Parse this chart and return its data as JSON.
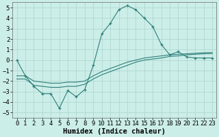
{
  "xlabel": "Humidex (Indice chaleur)",
  "bg_color": "#cceee8",
  "line_color": "#2d7d78",
  "grid_color": "#aad4cc",
  "xlim": [
    -0.5,
    23.5
  ],
  "ylim": [
    -5.5,
    5.5
  ],
  "xticks": [
    0,
    1,
    2,
    3,
    4,
    5,
    6,
    7,
    8,
    9,
    10,
    11,
    12,
    13,
    14,
    15,
    16,
    17,
    18,
    19,
    20,
    21,
    22,
    23
  ],
  "yticks": [
    -5,
    -4,
    -3,
    -2,
    -1,
    0,
    1,
    2,
    3,
    4,
    5
  ],
  "main_y": [
    0.0,
    -1.5,
    -2.5,
    -3.2,
    -3.2,
    -4.6,
    -2.9,
    -3.5,
    -2.8,
    -0.5,
    2.5,
    3.5,
    4.8,
    5.2,
    4.8,
    4.0,
    3.2,
    1.5,
    0.5,
    0.8,
    0.3,
    0.2,
    0.2,
    0.2
  ],
  "line1_y": [
    -1.5,
    -1.5,
    -2.0,
    -2.1,
    -2.2,
    -2.2,
    -2.1,
    -2.1,
    -2.0,
    -1.5,
    -1.1,
    -0.8,
    -0.5,
    -0.2,
    0.0,
    0.2,
    0.3,
    0.4,
    0.5,
    0.55,
    0.6,
    0.65,
    0.7,
    0.72
  ],
  "line2_y": [
    -1.8,
    -1.8,
    -2.4,
    -2.5,
    -2.6,
    -2.6,
    -2.5,
    -2.5,
    -2.3,
    -1.8,
    -1.4,
    -1.1,
    -0.8,
    -0.5,
    -0.2,
    0.0,
    0.1,
    0.2,
    0.35,
    0.4,
    0.5,
    0.55,
    0.6,
    0.62
  ],
  "xlabel_fontsize": 7.5,
  "tick_fontsize": 6.5
}
